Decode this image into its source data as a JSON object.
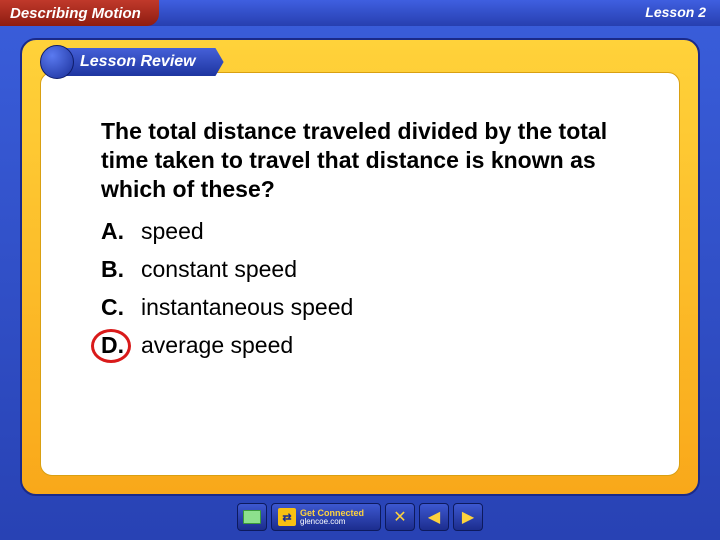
{
  "header": {
    "chapter_title": "Describing Motion",
    "lesson_label": "Lesson 2"
  },
  "ribbon": {
    "label": "Lesson Review"
  },
  "content": {
    "question": "The total distance traveled divided by the total time taken to travel that distance is known as which of these?",
    "options": [
      {
        "label": "A.",
        "text": "speed"
      },
      {
        "label": "B.",
        "text": "constant speed"
      },
      {
        "label": "C.",
        "text": "instantaneous speed"
      },
      {
        "label": "D.",
        "text": "average speed"
      }
    ],
    "correct_index": 3,
    "correct_marker_color": "#d91a1a"
  },
  "nav": {
    "connect_top": "Get Connected",
    "connect_bottom": "glencoe.com"
  },
  "colors": {
    "outer_bg_top": "#3a5edb",
    "outer_bg_bottom": "#2842b4",
    "yellow_top": "#ffd23a",
    "yellow_bottom": "#f9a81a",
    "ribbon_top": "#4560d8",
    "ribbon_bottom": "#1e35a0",
    "chapter_top": "#c0392b",
    "chapter_bottom": "#8e1c10",
    "nav_accent": "#fdd23e"
  }
}
